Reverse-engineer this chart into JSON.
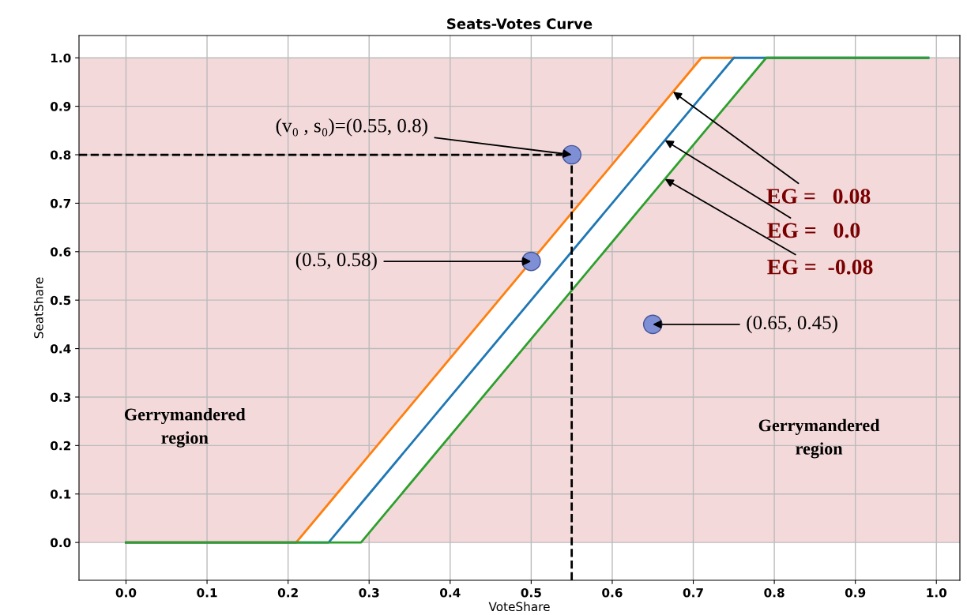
{
  "chart_data": {
    "type": "line",
    "title": "Seats-Votes Curve",
    "xlabel": "VoteShare",
    "ylabel": "SeatShare",
    "x": [
      0,
      0.21,
      0.25,
      0.29,
      0.71,
      0.75,
      0.79,
      0.99
    ],
    "series": [
      {
        "color": "#ff7f0e",
        "values": [
          0,
          0,
          0.08,
          0.16,
          1,
          1,
          null,
          null
        ]
      },
      {
        "color": "#1f77b4",
        "values": [
          0,
          0,
          0,
          0.08,
          0.92,
          1,
          1,
          1
        ],
        "lower": [
          0,
          0,
          0,
          0,
          0.84,
          0.92,
          1,
          1
        ],
        "upper": [
          0,
          0,
          0.08,
          0.16,
          1,
          1,
          1,
          1
        ]
      },
      {
        "color": "#2ca02c",
        "values": [
          0,
          0,
          0,
          0,
          0.84,
          0.92,
          1,
          1
        ]
      },
      {
        "type": "scatter",
        "color": "#7f8fd6",
        "x": [
          0.55,
          0.5,
          0.65
        ],
        "values": [
          0.8,
          0.58,
          0.45
        ],
        "marker": "circle"
      }
    ],
    "bands": [
      {
        "axis": "y",
        "from": 0,
        "to": 1,
        "color": "#f4d9da"
      }
    ],
    "ref_lines": [
      {
        "axis": "x",
        "value": 0.55,
        "line_style": "dashed",
        "color": "#000000"
      },
      {
        "axis": "y",
        "value": 0.8,
        "line_style": "dashed",
        "color": "#000000"
      }
    ],
    "annotations": [
      {
        "text": "(v₀ , s₀)=(0.55, 0.8)",
        "x": 0.55,
        "y": 0.8
      },
      {
        "text": "(0.5, 0.58)",
        "x": 0.5,
        "y": 0.58
      },
      {
        "text": "(0.65, 0.45)",
        "x": 0.65,
        "y": 0.45
      },
      {
        "text": "EG =   0.08",
        "x": 0.675,
        "y": 0.93
      },
      {
        "text": "EG =   0.0",
        "x": 0.665,
        "y": 0.83
      },
      {
        "text": "EG =  -0.08",
        "x": 0.665,
        "y": 0.75
      },
      "Gerrymandered\nregion",
      "Gerrymandered\nregion"
    ],
    "xlim": [
      -0.058,
      1.029
    ],
    "ylim": [
      -0.078,
      1.046
    ],
    "xticks": [
      {
        "value": 0,
        "label": "0.0"
      },
      0.1,
      0.2,
      0.3,
      0.4,
      0.5,
      0.6,
      0.7,
      0.8,
      0.9,
      {
        "value": 1,
        "label": "1.0"
      }
    ],
    "yticks": [
      {
        "value": 0,
        "label": "0.0"
      },
      0.1,
      0.2,
      0.3,
      0.4,
      0.5,
      0.6,
      0.7,
      0.8,
      0.9,
      {
        "value": 1,
        "label": "1.0"
      }
    ],
    "grid": true,
    "legend": false
  }
}
